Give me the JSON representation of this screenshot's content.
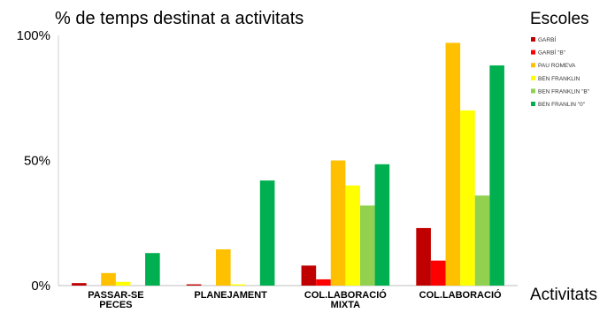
{
  "chart_data": {
    "type": "bar",
    "title": "% de temps destinat a activitats",
    "xlabel": "Activitats",
    "legend_title": "Escoles",
    "legend_position": "right",
    "ylim": [
      0,
      100
    ],
    "yticks": [
      "0%",
      "50%",
      "100%"
    ],
    "grid": false,
    "categories": [
      [
        "PASSAR-SE",
        "PECES"
      ],
      [
        "PLANEJAMENT"
      ],
      [
        "COL.LABORACIÓ",
        "MIXTA"
      ],
      [
        "COL.LABORACIÓ"
      ]
    ],
    "series": [
      {
        "name": "GARBÍ",
        "color": "#c00000",
        "values": [
          1,
          0.5,
          8,
          23
        ]
      },
      {
        "name": "GARBÍ \"B\"",
        "color": "#ff0000",
        "values": [
          0,
          0,
          2.5,
          10
        ]
      },
      {
        "name": "PAU ROMEVA",
        "color": "#ffc000",
        "values": [
          5,
          14.5,
          50,
          97
        ]
      },
      {
        "name": "BEN FRANKLIN",
        "color": "#ffff00",
        "values": [
          1.5,
          0.5,
          40,
          70
        ]
      },
      {
        "name": "BEN FRANKLIN \"B\"",
        "color": "#92d050",
        "values": [
          0,
          0,
          32,
          36
        ]
      },
      {
        "name": "BEN FRANLIN \"0\"",
        "color": "#00b050",
        "values": [
          13,
          42,
          48.5,
          88
        ]
      }
    ]
  }
}
